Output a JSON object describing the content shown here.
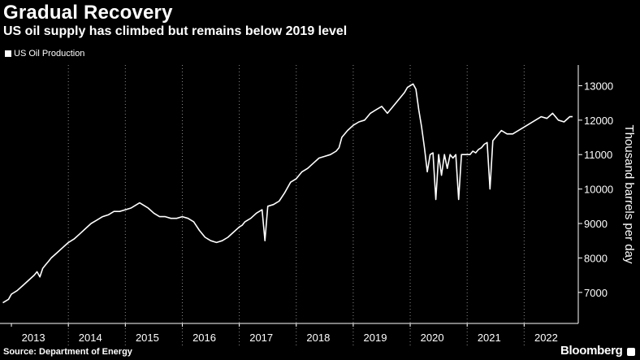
{
  "header": {
    "title": "Gradual Recovery",
    "subtitle": "US oil supply has climbed but remains below 2019 level"
  },
  "footer": {
    "source": "Source: Department of Energy",
    "brand": "Bloomberg"
  },
  "chart_data": {
    "type": "line",
    "title": "Gradual Recovery",
    "subtitle": "US oil supply has climbed but remains below 2019 level",
    "ylabel": "Thousand barrels per day",
    "xlabel": "",
    "x_ticks": [
      "2013",
      "2014",
      "2015",
      "2016",
      "2017",
      "2018",
      "2019",
      "2020",
      "2021",
      "2022"
    ],
    "y_ticks": [
      7000,
      8000,
      9000,
      10000,
      11000,
      12000,
      13000
    ],
    "xlim": [
      2012.8,
      2022.95
    ],
    "ylim": [
      6100,
      13600
    ],
    "grid": "vertical dotted lines at each year",
    "legend_position": "top-left",
    "line_color": "#ffffff",
    "series": [
      {
        "name": "US Oil Production",
        "x": [
          2012.85,
          2012.95,
          2013.0,
          2013.1,
          2013.2,
          2013.3,
          2013.4,
          2013.45,
          2013.5,
          2013.55,
          2013.6,
          2013.65,
          2013.7,
          2013.8,
          2013.9,
          2014.0,
          2014.1,
          2014.2,
          2014.3,
          2014.4,
          2014.5,
          2014.6,
          2014.7,
          2014.8,
          2014.9,
          2015.0,
          2015.1,
          2015.2,
          2015.25,
          2015.3,
          2015.35,
          2015.4,
          2015.5,
          2015.6,
          2015.7,
          2015.8,
          2015.9,
          2016.0,
          2016.1,
          2016.2,
          2016.3,
          2016.4,
          2016.5,
          2016.6,
          2016.7,
          2016.8,
          2016.9,
          2017.0,
          2017.05,
          2017.1,
          2017.15,
          2017.2,
          2017.3,
          2017.35,
          2017.4,
          2017.45,
          2017.5,
          2017.6,
          2017.65,
          2017.7,
          2017.8,
          2017.9,
          2018.0,
          2018.1,
          2018.2,
          2018.3,
          2018.4,
          2018.5,
          2018.6,
          2018.7,
          2018.75,
          2018.8,
          2018.9,
          2019.0,
          2019.1,
          2019.2,
          2019.25,
          2019.3,
          2019.4,
          2019.5,
          2019.6,
          2019.7,
          2019.8,
          2019.9,
          2019.95,
          2020.0,
          2020.05,
          2020.1,
          2020.15,
          2020.2,
          2020.25,
          2020.3,
          2020.35,
          2020.4,
          2020.45,
          2020.5,
          2020.55,
          2020.6,
          2020.65,
          2020.7,
          2020.75,
          2020.8,
          2020.85,
          2020.9,
          2020.95,
          2021.0,
          2021.05,
          2021.1,
          2021.15,
          2021.2,
          2021.25,
          2021.3,
          2021.35,
          2021.4,
          2021.45,
          2021.5,
          2021.6,
          2021.7,
          2021.8,
          2021.9,
          2022.0,
          2022.1,
          2022.2,
          2022.3,
          2022.4,
          2022.5,
          2022.6,
          2022.7,
          2022.8,
          2022.85
        ],
        "values": [
          6700,
          6800,
          6950,
          7050,
          7200,
          7350,
          7500,
          7600,
          7450,
          7700,
          7800,
          7900,
          8000,
          8150,
          8300,
          8450,
          8550,
          8700,
          8850,
          9000,
          9100,
          9200,
          9250,
          9350,
          9350,
          9400,
          9450,
          9550,
          9600,
          9550,
          9500,
          9450,
          9300,
          9200,
          9200,
          9150,
          9150,
          9200,
          9150,
          9050,
          8800,
          8600,
          8500,
          8450,
          8500,
          8600,
          8750,
          8900,
          8950,
          9050,
          9100,
          9150,
          9300,
          9350,
          9400,
          8500,
          9500,
          9550,
          9600,
          9650,
          9900,
          10200,
          10300,
          10500,
          10600,
          10750,
          10900,
          10950,
          11000,
          11100,
          11200,
          11500,
          11700,
          11850,
          11950,
          12000,
          12100,
          12200,
          12300,
          12400,
          12200,
          12400,
          12600,
          12800,
          12950,
          13000,
          13050,
          12900,
          12300,
          11800,
          11200,
          10500,
          11000,
          11050,
          9700,
          11000,
          10400,
          11000,
          10600,
          11000,
          10900,
          11000,
          9700,
          11000,
          11000,
          11000,
          11000,
          11100,
          11050,
          11150,
          11200,
          11300,
          11350,
          10000,
          11400,
          11500,
          11700,
          11600,
          11600,
          11700,
          11800,
          11900,
          12000,
          12100,
          12050,
          12200,
          12000,
          11950,
          12100,
          12100
        ]
      }
    ]
  }
}
